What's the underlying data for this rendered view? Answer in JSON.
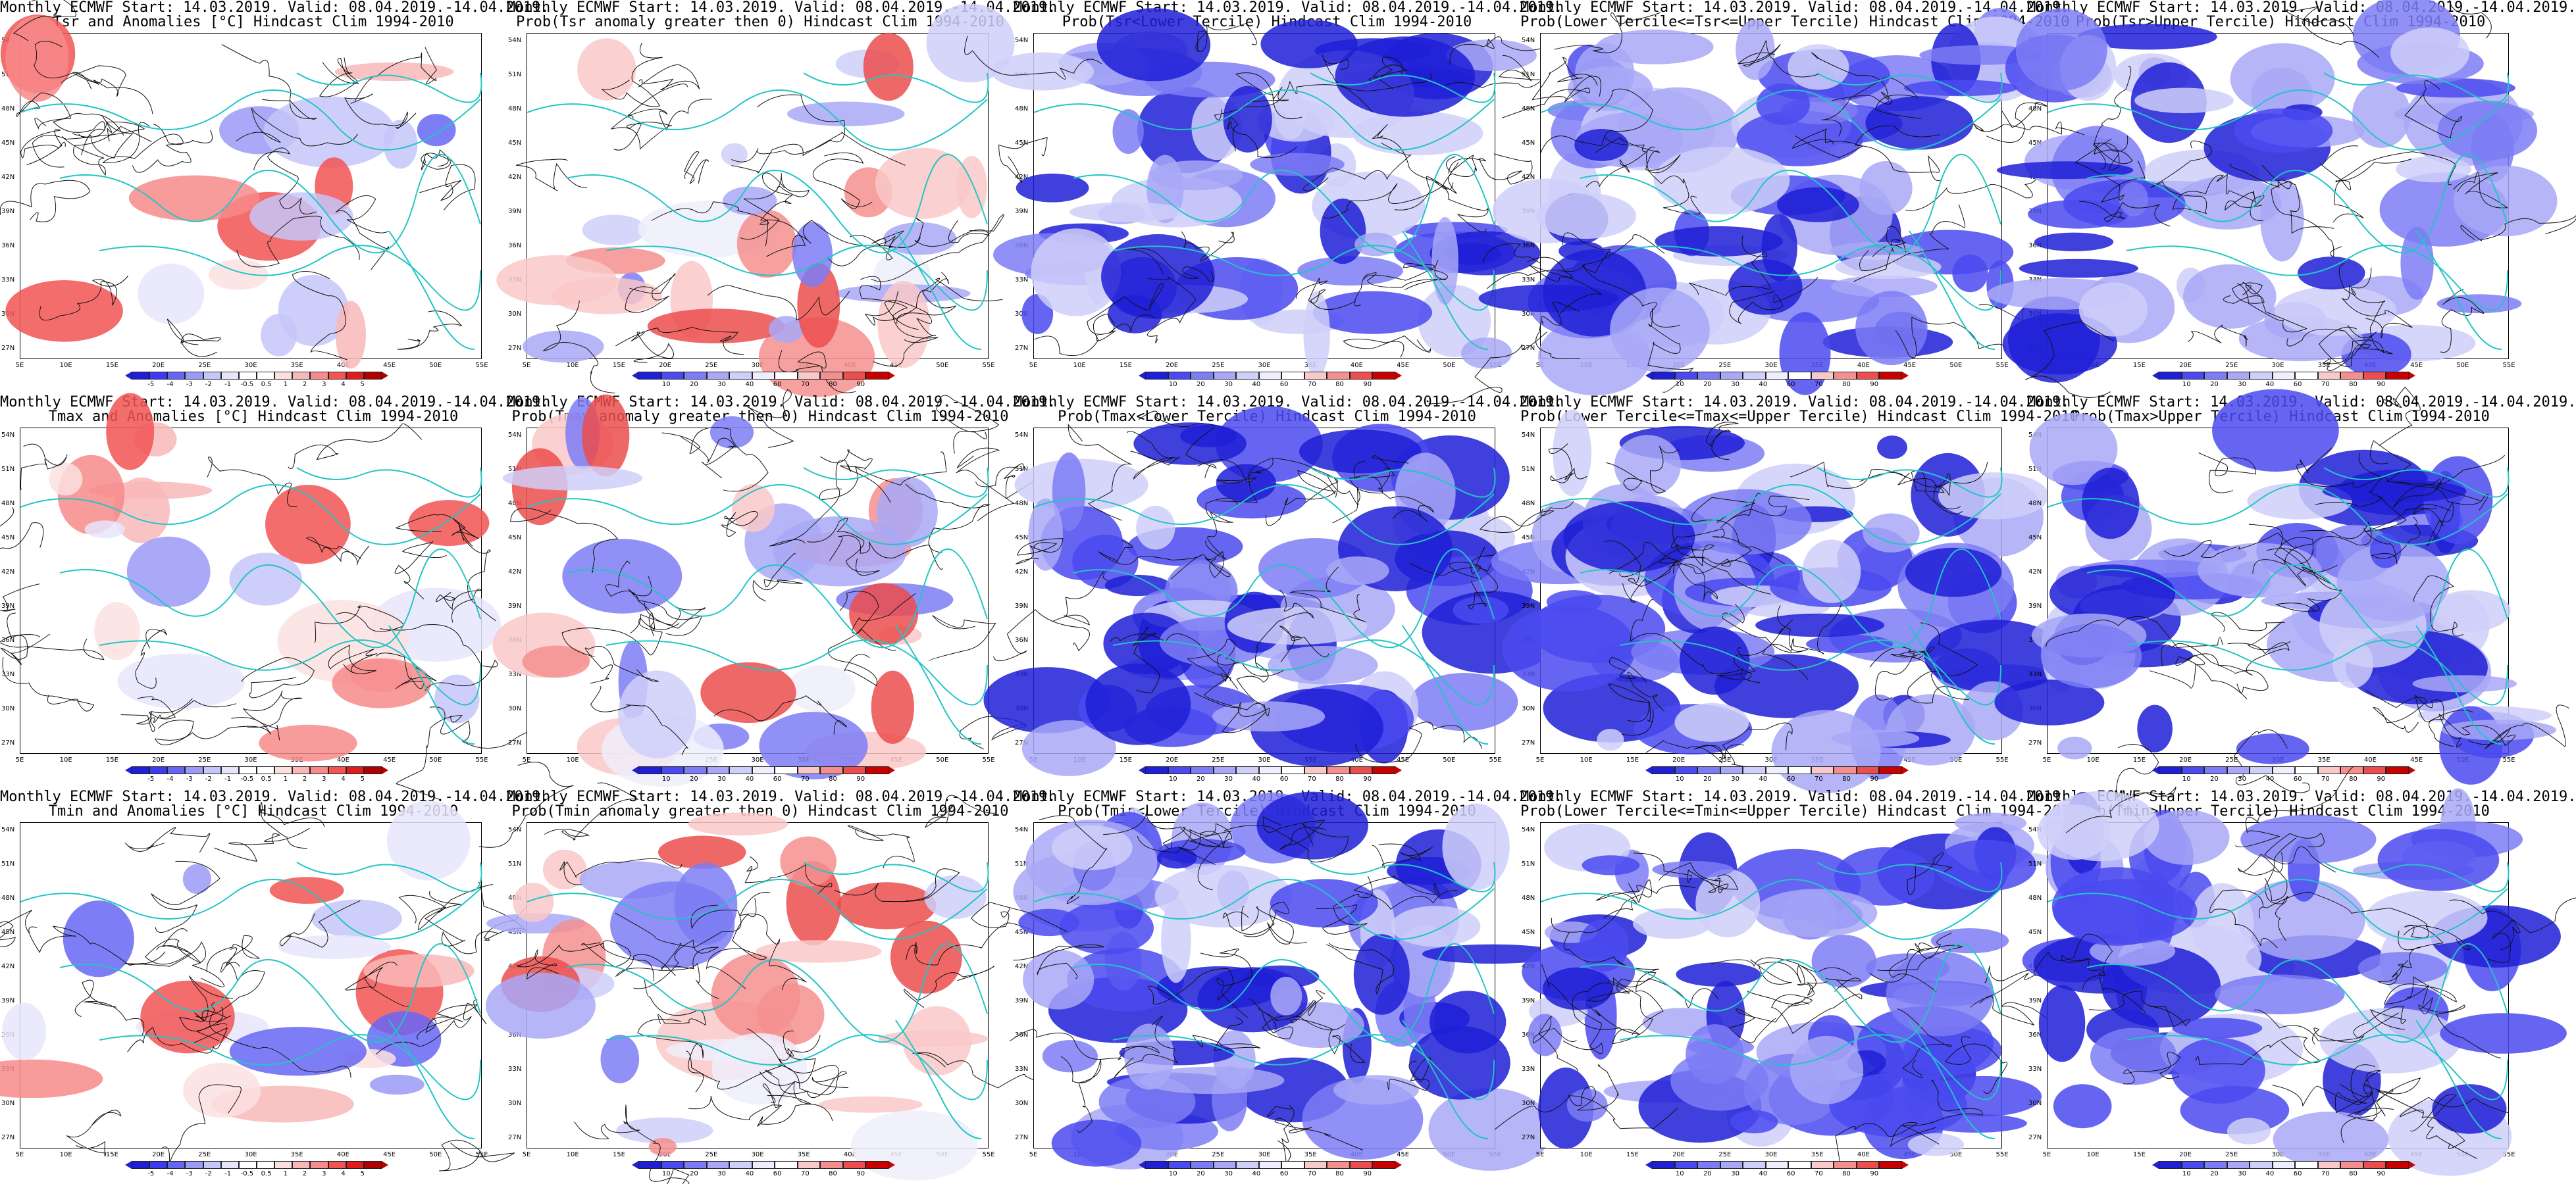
{
  "colors": {
    "anomaly_scale": [
      "#1f1fd6",
      "#3b3bf2",
      "#6666f5",
      "#9a9af7",
      "#c6c6f9",
      "#e6e6fb",
      "#ffffff",
      "#ffffff",
      "#fbe0e0",
      "#f9b8b8",
      "#f78a8a",
      "#f25353",
      "#e01b1b",
      "#b00000"
    ],
    "prob_scale": [
      "#1f1fd6",
      "#4a4af0",
      "#7c7cf4",
      "#a8a8f7",
      "#cfcff9",
      "#eeeefc",
      "#ffffff",
      "#f9c8c8",
      "#f48f8f",
      "#ec4d4d",
      "#c90000"
    ],
    "coast": "#22c5c5",
    "contour": "#111111"
  },
  "lat_labels": [
    "54N",
    "51N",
    "48N",
    "45N",
    "42N",
    "39N",
    "36N",
    "33N",
    "30N",
    "27N"
  ],
  "lon_labels": [
    "5E",
    "10E",
    "15E",
    "20E",
    "25E",
    "30E",
    "35E",
    "40E",
    "45E",
    "50E",
    "55E"
  ],
  "anomaly_ticks": [
    "-5",
    "-4",
    "-3",
    "-2",
    "-1",
    "-0.5",
    "0.5",
    "1",
    "2",
    "3",
    "4",
    "5"
  ],
  "prob_ticks": [
    "10",
    "20",
    "30",
    "40",
    "60",
    "70",
    "80",
    "90"
  ],
  "panels": [
    {
      "title1": "Monthly ECMWF Start: 14.03.2019. Valid: 08.04.2019.-14.04.2019.",
      "title2": "Tsr and Anomalies [°C] Hindcast Clim 1994-2010",
      "kind": "anom",
      "cover": 0.12,
      "seed": 11
    },
    {
      "title1": "Monthly ECMWF Start: 14.03.2019. Valid: 08.04.2019.-14.04.2019.",
      "title2": "Prob(Tsr anomaly greater then 0) Hindcast Clim 1994-2010",
      "kind": "prob_anom",
      "cover": 0.3,
      "seed": 12
    },
    {
      "title1": "Monthly ECMWF Start: 14.03.2019. Valid: 08.04.2019.-14.04.2019.",
      "title2": "Prob(Tsr<Lower Tercile) Hindcast Clim 1994-2010",
      "kind": "blue",
      "cover": 0.8,
      "seed": 13
    },
    {
      "title1": "Monthly ECMWF Start: 14.03.2019. Valid: 08.04.2019.-14.04.2019.",
      "title2": "Prob(Lower Tercile<=Tsr<=Upper Tercile) Hindcast Clim 1994-2010",
      "kind": "blue",
      "cover": 0.9,
      "seed": 14
    },
    {
      "title1": "Monthly ECMWF Start: 14.03.2019. Valid: 08.04.2019.-14.04.2019.",
      "title2": "Prob(Tsr>Upper Tercile) Hindcast Clim 1994-2010",
      "kind": "blue",
      "cover": 0.75,
      "seed": 15
    },
    {
      "title1": "Monthly ECMWF Start: 14.03.2019. Valid: 08.04.2019.-14.04.2019.",
      "title2": "Tmax and Anomalies [°C] Hindcast Clim 1994-2010",
      "kind": "anom",
      "cover": 0.15,
      "seed": 21
    },
    {
      "title1": "Monthly ECMWF Start: 14.03.2019. Valid: 08.04.2019.-14.04.2019.",
      "title2": "Prob(Tmax anomaly greater then 0) Hindcast Clim 1994-2010",
      "kind": "prob_anom",
      "cover": 0.3,
      "seed": 22
    },
    {
      "title1": "Monthly ECMWF Start: 14.03.2019. Valid: 08.04.2019.-14.04.2019.",
      "title2": "Prob(Tmax<Lower Tercile) Hindcast Clim 1994-2010",
      "kind": "blue",
      "cover": 0.75,
      "seed": 23
    },
    {
      "title1": "Monthly ECMWF Start: 14.03.2019. Valid: 08.04.2019.-14.04.2019.",
      "title2": "Prob(Lower Tercile<=Tmax<=Upper Tercile) Hindcast Clim 1994-2010",
      "kind": "blue",
      "cover": 0.85,
      "seed": 24
    },
    {
      "title1": "Monthly ECMWF Start: 14.03.2019. Valid: 08.04.2019.-14.04.2019.",
      "title2": "Prob(Tmax>Upper Tercile) Hindcast Clim 1994-2010",
      "kind": "blue",
      "cover": 0.8,
      "seed": 25
    },
    {
      "title1": "Monthly ECMWF Start: 14.03.2019. Valid: 08.04.2019.-14.04.2019.",
      "title2": "Tmin and Anomalies [°C] Hindcast Clim 1994-2010",
      "kind": "anom",
      "cover": 0.14,
      "seed": 31
    },
    {
      "title1": "Monthly ECMWF Start: 14.03.2019. Valid: 08.04.2019.-14.04.2019.",
      "title2": "Prob(Tmin anomaly greater then 0) Hindcast Clim 1994-2010",
      "kind": "prob_anom",
      "cover": 0.35,
      "seed": 32
    },
    {
      "title1": "Monthly ECMWF Start: 14.03.2019. Valid: 08.04.2019.-14.04.2019.",
      "title2": "Prob(Tmin<Lower Tercile) Hindcast Clim 1994-2010",
      "kind": "blue",
      "cover": 0.85,
      "seed": 33
    },
    {
      "title1": "Monthly ECMWF Start: 14.03.2019. Valid: 08.04.2019.-14.04.2019.",
      "title2": "Prob(Lower Tercile<=Tmin<=Upper Tercile) Hindcast Clim 1994-2010",
      "kind": "blue",
      "cover": 0.85,
      "seed": 34
    },
    {
      "title1": "Monthly ECMWF Start: 14.03.2019. Valid: 08.04.2019.-14.04.2019.",
      "title2": "Prob(Tmin>Upper Tercile) Hindcast Clim 1994-2010",
      "kind": "blue",
      "cover": 0.75,
      "seed": 35
    }
  ]
}
